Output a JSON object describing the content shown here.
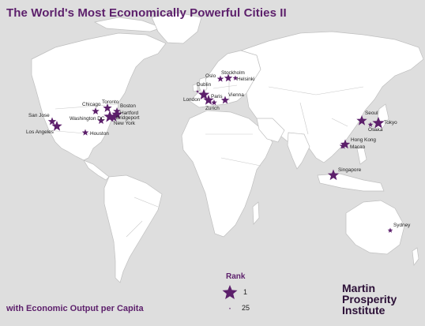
{
  "title": "The World's Most Economically Powerful Cities II",
  "subtitle": "with Economic Output per Capita",
  "legend": {
    "title": "Rank",
    "max_label": "1",
    "min_label": "25"
  },
  "institute": {
    "line1": "Martin",
    "line2": "Prosperity",
    "line3": "Institute"
  },
  "colors": {
    "background": "#dedede",
    "land": "#ffffff",
    "accent": "#5c1f6b"
  },
  "cities": [
    {
      "label": "Oslo"
    },
    {
      "label": "Stockholm"
    },
    {
      "label": "Helsinki"
    },
    {
      "label": "Dublin"
    },
    {
      "label": "London"
    },
    {
      "label": "Paris"
    },
    {
      "label": "Zurich"
    },
    {
      "label": "Vienna"
    },
    {
      "label": "Toronto"
    },
    {
      "label": "Chicago"
    },
    {
      "label": "Boston"
    },
    {
      "label": "Hartford"
    },
    {
      "label": "Bridgeport"
    },
    {
      "label": "New York"
    },
    {
      "label": "Washington DC"
    },
    {
      "label": "San Jose"
    },
    {
      "label": "Los Angeles"
    },
    {
      "label": "Houston"
    },
    {
      "label": "Seoul"
    },
    {
      "label": "Tokyo"
    },
    {
      "label": "Osaka"
    },
    {
      "label": "Hong Kong"
    },
    {
      "label": "Macao"
    },
    {
      "label": "Singapore"
    },
    {
      "label": "Sydney"
    }
  ]
}
